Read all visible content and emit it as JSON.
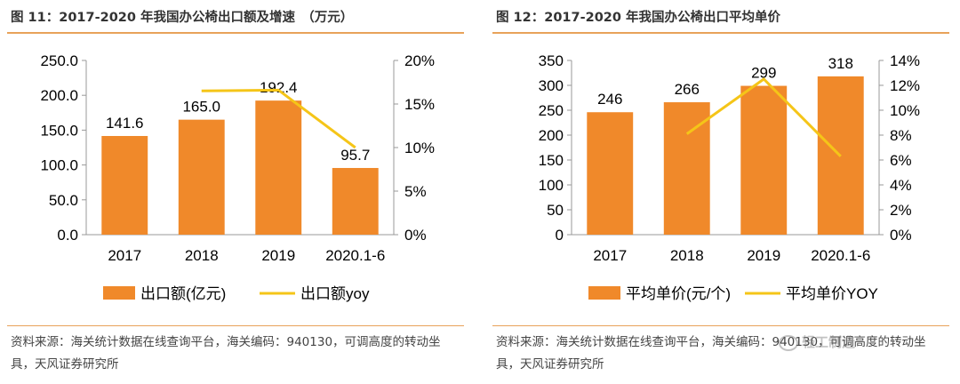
{
  "figures": [
    {
      "title": "图 11：2017-2020 年我国办公椅出口额及增速　（万元）",
      "source": "资料来源：海关统计数据在线查询平台，海关编码：940130，可调高度的转动坐具，天风证券研究所"
    },
    {
      "title": "图 12：2017-2020 年我国办公椅出口平均单价",
      "source": "资料来源：海关统计数据在线查询平台，海关编码：940130，可调高度的转动坐具，天风证券研究所"
    }
  ],
  "watermark": "轻工制造",
  "chart_data": [
    {
      "type": "bar",
      "categories": [
        "2017",
        "2018",
        "2019",
        "2020.1-6"
      ],
      "series": [
        {
          "name": "出口额(亿元)",
          "kind": "bar",
          "axis": "left",
          "values": [
            141.6,
            165.0,
            192.4,
            95.7
          ],
          "labels": [
            "141.6",
            "165.0",
            "192.4",
            "95.7"
          ]
        },
        {
          "name": "出口额yoy",
          "kind": "line",
          "axis": "right",
          "values": [
            null,
            16.5,
            16.6,
            10.0
          ]
        }
      ],
      "y_left": {
        "min": 0,
        "max": 250,
        "step": 50,
        "ticks": [
          "0.0",
          "50.0",
          "100.0",
          "150.0",
          "200.0",
          "250.0"
        ]
      },
      "y_right": {
        "min": 0,
        "max": 20,
        "step": 5,
        "ticks": [
          "0%",
          "5%",
          "10%",
          "15%",
          "20%"
        ]
      },
      "grid": false,
      "legend": "bottom",
      "colors": {
        "bar": "#f0892a",
        "line": "#f5c518"
      }
    },
    {
      "type": "bar",
      "categories": [
        "2017",
        "2018",
        "2019",
        "2020.1-6"
      ],
      "series": [
        {
          "name": "平均单价(元/个)",
          "kind": "bar",
          "axis": "left",
          "values": [
            246,
            266,
            299,
            318
          ],
          "labels": [
            "246",
            "266",
            "299",
            "318"
          ]
        },
        {
          "name": "平均单价YOY",
          "kind": "line",
          "axis": "right",
          "values": [
            null,
            8.1,
            12.5,
            6.3
          ]
        }
      ],
      "y_left": {
        "min": 0,
        "max": 350,
        "step": 50,
        "ticks": [
          "0",
          "50",
          "100",
          "150",
          "200",
          "250",
          "300",
          "350"
        ]
      },
      "y_right": {
        "min": 0,
        "max": 14,
        "step": 2,
        "ticks": [
          "0%",
          "2%",
          "4%",
          "6%",
          "8%",
          "10%",
          "12%",
          "14%"
        ]
      },
      "grid": false,
      "legend": "bottom",
      "colors": {
        "bar": "#f0892a",
        "line": "#f5c518"
      }
    }
  ]
}
